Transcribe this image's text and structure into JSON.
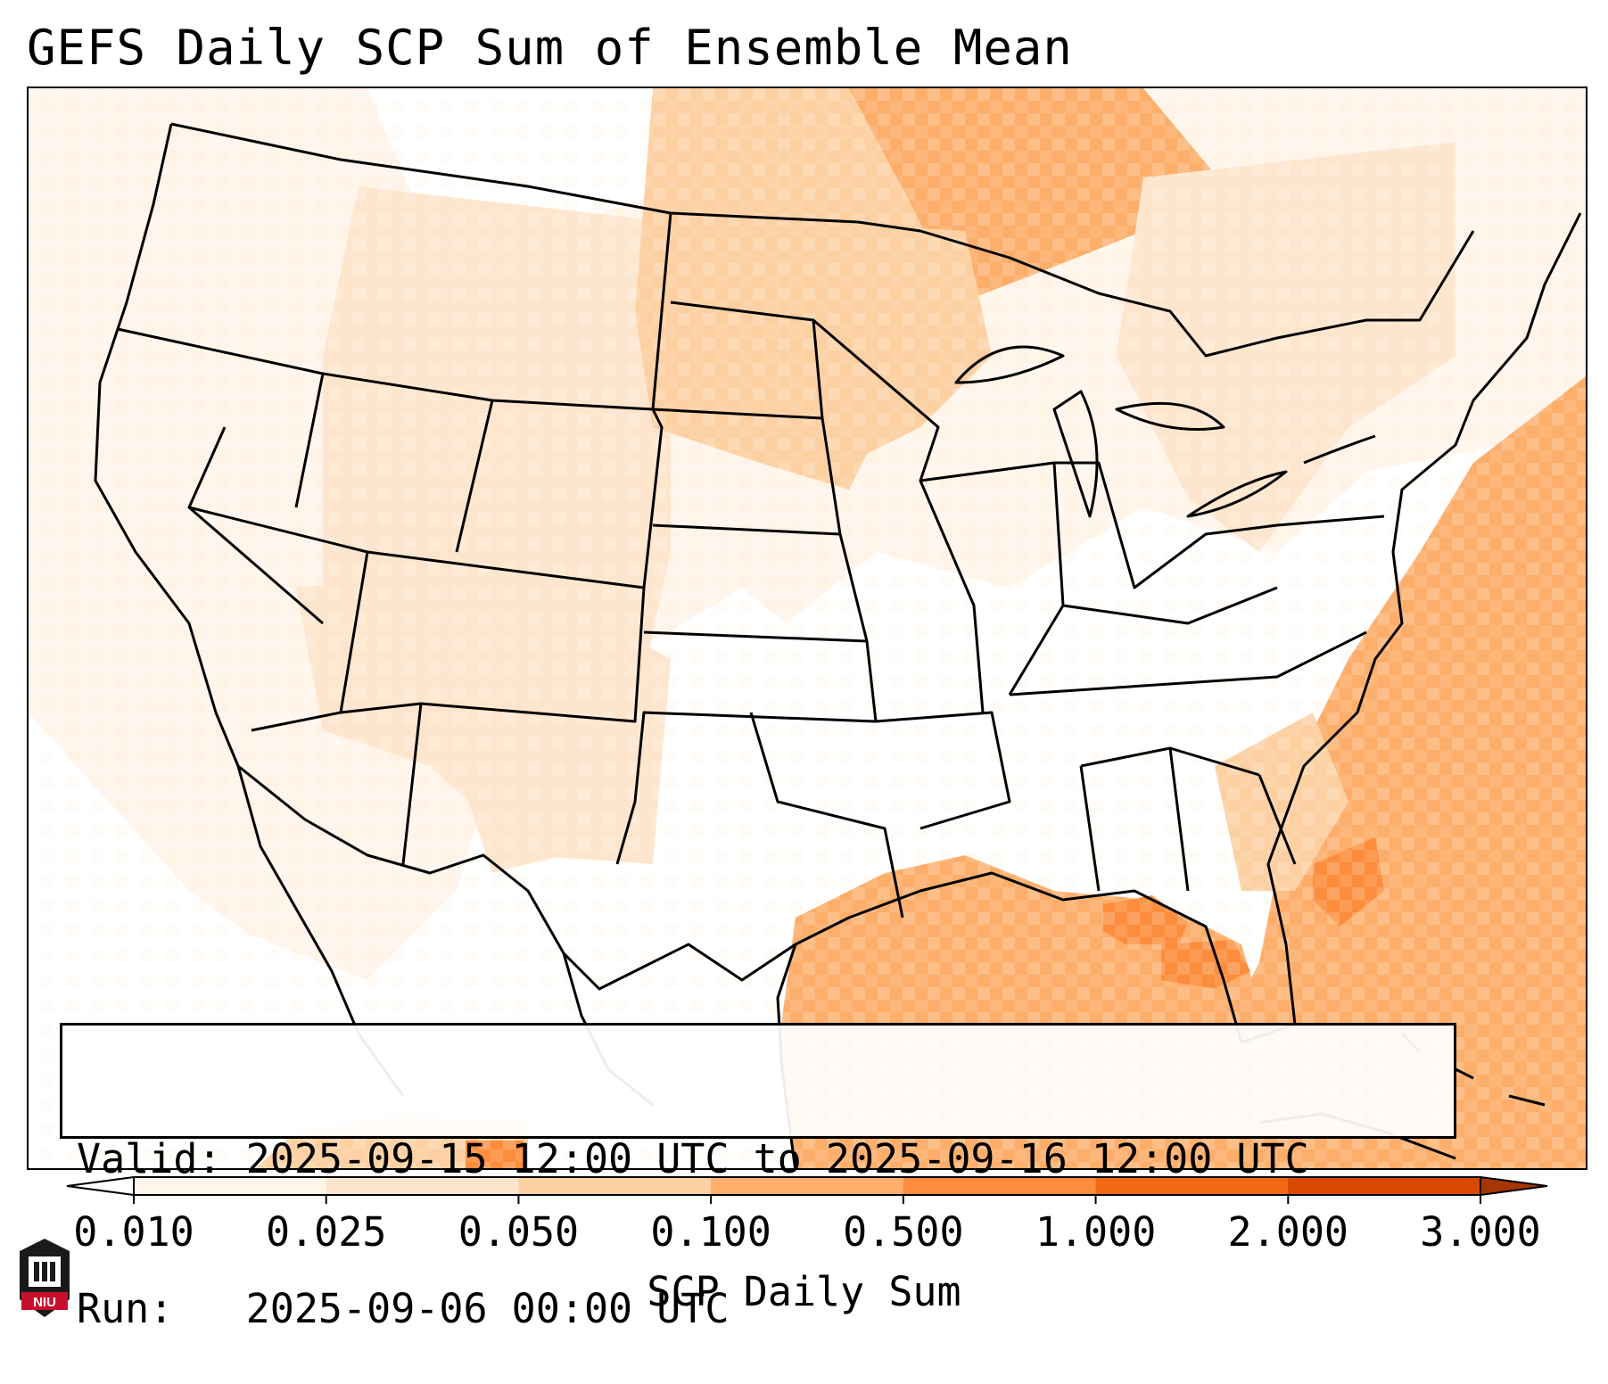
{
  "title": "GEFS Daily SCP Sum of Ensemble Mean",
  "info": {
    "valid_line": "Valid: 2025-09-15 12:00 UTC to 2025-09-16 12:00 UTC",
    "run_line": "Run:   2025-09-06 00:00 UTC"
  },
  "colorbar": {
    "label": "SCP Daily Sum",
    "extend": "both",
    "ticks": [
      "0.010",
      "0.025",
      "0.050",
      "0.100",
      "0.500",
      "1.000",
      "2.000",
      "3.000"
    ],
    "colors": [
      "#fff5eb",
      "#fee6ce",
      "#fdd0a2",
      "#fdae6b",
      "#fd8d3c",
      "#f16913",
      "#d94801"
    ],
    "under_color": "#ffffff",
    "over_color": "#a63603"
  },
  "logo": {
    "text": "NIU",
    "color": "#c8102e"
  },
  "map_regions": [
    {
      "level": 0,
      "desc": "Pacific Northwest light"
    },
    {
      "level": 1,
      "desc": "Northern Rockies / Montana"
    },
    {
      "level": 2,
      "desc": "Dakotas"
    },
    {
      "level": 3,
      "desc": "Minnesota / Lake Superior"
    },
    {
      "level": 3,
      "desc": "Gulf of Mexico"
    },
    {
      "level": 3,
      "desc": "Western Atlantic"
    },
    {
      "level": 4,
      "desc": "Central Gulf maximum"
    }
  ]
}
